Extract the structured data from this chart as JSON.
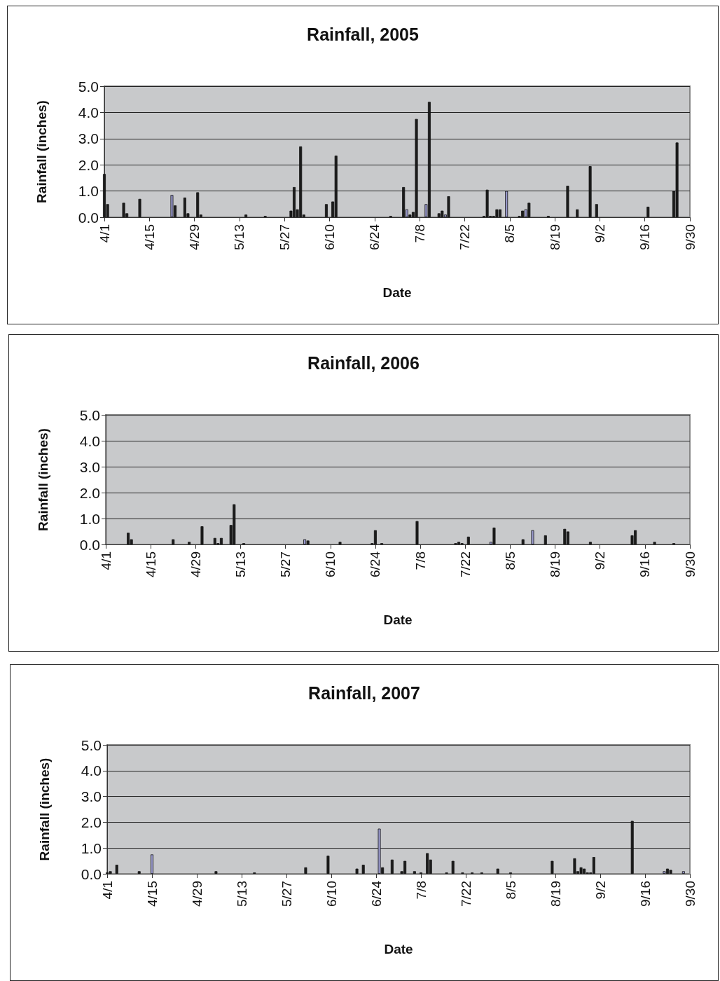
{
  "chart_data": [
    {
      "type": "bar",
      "title": "Rainfall, 2005",
      "xlabel": "Date",
      "ylabel": "Rainfall (inches)",
      "xlim": [
        "--04-01",
        "--09-30"
      ],
      "xticks": [
        {
          "value": "--04-01",
          "label": "4/1"
        },
        {
          "value": "--04-15",
          "label": "4/15"
        },
        {
          "value": "--04-29",
          "label": "4/29"
        },
        {
          "value": "--05-13",
          "label": "5/13"
        },
        {
          "value": "--05-27",
          "label": "5/27"
        },
        {
          "value": "--06-10",
          "label": "6/10"
        },
        {
          "value": "--06-24",
          "label": "6/24"
        },
        {
          "value": "--07-08",
          "label": "7/8"
        },
        {
          "value": "--07-22",
          "label": "7/22"
        },
        {
          "value": "--08-05",
          "label": "8/5"
        },
        {
          "value": "--08-19",
          "label": "8/19"
        },
        {
          "value": "--09-02",
          "label": "9/2"
        },
        {
          "value": "--09-16",
          "label": "9/16"
        },
        {
          "value": "--09-30",
          "label": "9/30"
        }
      ],
      "ylim": [
        0,
        5
      ],
      "yticks": [
        {
          "value": 0,
          "label": "0.0"
        },
        {
          "value": 1,
          "label": "1.0"
        },
        {
          "value": 2,
          "label": "2.0"
        },
        {
          "value": 3,
          "label": "3.0"
        },
        {
          "value": 4,
          "label": "4.0"
        },
        {
          "value": 5,
          "label": "5.0"
        }
      ],
      "grid": "y",
      "series": [
        {
          "color": "#1c1c1c",
          "x": [
            "--04-01",
            "--04-02",
            "--04-07",
            "--04-08",
            "--04-12",
            "--04-23",
            "--04-26",
            "--04-27",
            "--04-30",
            "--05-01",
            "--05-15",
            "--05-21",
            "--05-29",
            "--05-30",
            "--05-31",
            "--06-01",
            "--06-02",
            "--06-09",
            "--06-11",
            "--06-12",
            "--06-29",
            "--07-03",
            "--07-05",
            "--07-06",
            "--07-07",
            "--07-11",
            "--07-14",
            "--07-15",
            "--07-17",
            "--07-28",
            "--07-29",
            "--07-30",
            "--07-31",
            "--08-01",
            "--08-02",
            "--08-08",
            "--08-09",
            "--08-11",
            "--08-17",
            "--08-23",
            "--08-26",
            "--08-30",
            "--09-01",
            "--09-17",
            "--09-25",
            "--09-26"
          ],
          "values": [
            1.65,
            0.5,
            0.55,
            0.15,
            0.7,
            0.45,
            0.75,
            0.15,
            0.95,
            0.1,
            0.1,
            0.05,
            0.25,
            1.15,
            0.3,
            2.7,
            0.1,
            0.5,
            0.6,
            2.35,
            0.05,
            1.15,
            0.1,
            0.2,
            3.75,
            4.4,
            0.15,
            0.25,
            0.8,
            0.05,
            1.05,
            0.05,
            0.05,
            0.3,
            0.3,
            0.05,
            0.25,
            0.55,
            0.05,
            1.2,
            0.3,
            1.95,
            0.5,
            0.4,
            1.0,
            2.85
          ]
        },
        {
          "color": "#9999cc",
          "x": [
            "--04-22",
            "--07-04",
            "--07-10",
            "--07-16",
            "--08-04",
            "--08-10"
          ],
          "values": [
            0.85,
            0.3,
            0.5,
            0.1,
            1.0,
            0.3
          ]
        }
      ]
    },
    {
      "type": "bar",
      "title": "Rainfall, 2006",
      "xlabel": "Date",
      "ylabel": "Rainfall (inches)",
      "xlim": [
        "--04-01",
        "--09-30"
      ],
      "xticks": [
        {
          "value": "--04-01",
          "label": "4/1"
        },
        {
          "value": "--04-15",
          "label": "4/15"
        },
        {
          "value": "--04-29",
          "label": "4/29"
        },
        {
          "value": "--05-13",
          "label": "5/13"
        },
        {
          "value": "--05-27",
          "label": "5/27"
        },
        {
          "value": "--06-10",
          "label": "6/10"
        },
        {
          "value": "--06-24",
          "label": "6/24"
        },
        {
          "value": "--07-08",
          "label": "7/8"
        },
        {
          "value": "--07-22",
          "label": "7/22"
        },
        {
          "value": "--08-05",
          "label": "8/5"
        },
        {
          "value": "--08-19",
          "label": "8/19"
        },
        {
          "value": "--09-02",
          "label": "9/2"
        },
        {
          "value": "--09-16",
          "label": "9/16"
        },
        {
          "value": "--09-30",
          "label": "9/30"
        }
      ],
      "ylim": [
        0,
        5
      ],
      "yticks": [
        {
          "value": 0,
          "label": "0.0"
        },
        {
          "value": 1,
          "label": "1.0"
        },
        {
          "value": 2,
          "label": "2.0"
        },
        {
          "value": 3,
          "label": "3.0"
        },
        {
          "value": 4,
          "label": "4.0"
        },
        {
          "value": 5,
          "label": "5.0"
        }
      ],
      "grid": "y",
      "series": [
        {
          "color": "#1c1c1c",
          "x": [
            "--04-08",
            "--04-09",
            "--04-22",
            "--04-27",
            "--05-01",
            "--05-05",
            "--05-06",
            "--05-07",
            "--05-10",
            "--05-11",
            "--05-14",
            "--06-03",
            "--06-13",
            "--06-23",
            "--06-24",
            "--06-26",
            "--07-07",
            "--07-19",
            "--07-20",
            "--07-21",
            "--07-23",
            "--07-31",
            "--08-09",
            "--08-16",
            "--08-22",
            "--08-23",
            "--08-30",
            "--09-12",
            "--09-13",
            "--09-19",
            "--09-25"
          ],
          "values": [
            0.45,
            0.2,
            0.2,
            0.1,
            0.7,
            0.25,
            0.05,
            0.25,
            0.75,
            1.55,
            0.05,
            0.15,
            0.1,
            0.05,
            0.55,
            0.05,
            0.9,
            0.05,
            0.1,
            0.05,
            0.3,
            0.65,
            0.2,
            0.35,
            0.6,
            0.5,
            0.1,
            0.35,
            0.55,
            0.1,
            0.05
          ]
        },
        {
          "color": "#9999cc",
          "x": [
            "--06-02",
            "--07-30",
            "--08-12"
          ],
          "values": [
            0.2,
            0.1,
            0.55
          ]
        }
      ]
    },
    {
      "type": "bar",
      "title": "Rainfall, 2007",
      "xlabel": "Date",
      "ylabel": "Rainfall (inches)",
      "xlim": [
        "--04-01",
        "--09-30"
      ],
      "xticks": [
        {
          "value": "--04-01",
          "label": "4/1"
        },
        {
          "value": "--04-15",
          "label": "4/15"
        },
        {
          "value": "--04-29",
          "label": "4/29"
        },
        {
          "value": "--05-13",
          "label": "5/13"
        },
        {
          "value": "--05-27",
          "label": "5/27"
        },
        {
          "value": "--06-10",
          "label": "6/10"
        },
        {
          "value": "--06-24",
          "label": "6/24"
        },
        {
          "value": "--07-08",
          "label": "7/8"
        },
        {
          "value": "--07-22",
          "label": "7/22"
        },
        {
          "value": "--08-05",
          "label": "8/5"
        },
        {
          "value": "--08-19",
          "label": "8/19"
        },
        {
          "value": "--09-02",
          "label": "9/2"
        },
        {
          "value": "--09-16",
          "label": "9/16"
        },
        {
          "value": "--09-30",
          "label": "9/30"
        }
      ],
      "ylim": [
        0,
        5
      ],
      "yticks": [
        {
          "value": 0,
          "label": "0.0"
        },
        {
          "value": 1,
          "label": "1.0"
        },
        {
          "value": 2,
          "label": "2.0"
        },
        {
          "value": 3,
          "label": "3.0"
        },
        {
          "value": 4,
          "label": "4.0"
        },
        {
          "value": 5,
          "label": "5.0"
        }
      ],
      "grid": "y",
      "series": [
        {
          "color": "#1c1c1c",
          "x": [
            "--04-01",
            "--04-02",
            "--04-04",
            "--04-11",
            "--05-05",
            "--05-17",
            "--06-02",
            "--06-09",
            "--06-18",
            "--06-20",
            "--06-26",
            "--06-29",
            "--07-02",
            "--07-03",
            "--07-06",
            "--07-08",
            "--07-10",
            "--07-11",
            "--07-16",
            "--07-18",
            "--07-21",
            "--07-24",
            "--07-27",
            "--08-01",
            "--08-05",
            "--08-18",
            "--08-25",
            "--08-26",
            "--08-27",
            "--08-28",
            "--08-29",
            "--08-30",
            "--08-31",
            "--09-12",
            "--09-23",
            "--09-24"
          ],
          "values": [
            0.05,
            0.1,
            0.35,
            0.1,
            0.1,
            0.05,
            0.25,
            0.7,
            0.2,
            0.35,
            0.25,
            0.55,
            0.1,
            0.5,
            0.1,
            0.05,
            0.8,
            0.55,
            0.05,
            0.5,
            0.05,
            0.05,
            0.05,
            0.2,
            0.05,
            0.5,
            0.6,
            0.1,
            0.25,
            0.2,
            0.05,
            0.05,
            0.65,
            2.05,
            0.2,
            0.15
          ]
        },
        {
          "color": "#9999cc",
          "x": [
            "--04-15",
            "--06-25",
            "--09-22",
            "--09-28"
          ],
          "values": [
            0.75,
            1.75,
            0.1,
            0.1
          ]
        }
      ]
    }
  ]
}
